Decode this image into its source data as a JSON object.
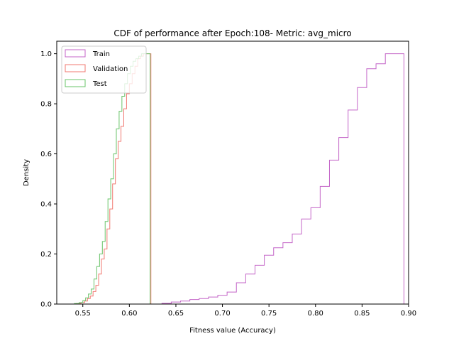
{
  "chart_data": {
    "type": "line",
    "subtype": "step-histogram-cdf",
    "title": "CDF of performance after Epoch:108- Metric: avg_micro",
    "xlabel": "Fitness value (Accuracy)",
    "ylabel": "Density",
    "xlim": [
      0.522,
      0.9
    ],
    "ylim": [
      0,
      1.05
    ],
    "xticks": [
      0.55,
      0.6,
      0.65,
      0.7,
      0.75,
      0.8,
      0.85,
      0.9
    ],
    "xtick_labels": [
      "0.55",
      "0.60",
      "0.65",
      "0.70",
      "0.75",
      "0.80",
      "0.85",
      "0.90"
    ],
    "yticks": [
      0.0,
      0.2,
      0.4,
      0.6,
      0.8,
      1.0
    ],
    "ytick_labels": [
      "0.0",
      "0.2",
      "0.4",
      "0.6",
      "0.8",
      "1.0"
    ],
    "legend_position": "top-left",
    "series": [
      {
        "name": "Train",
        "color": "#c466c8",
        "x": [
          0.635,
          0.645,
          0.655,
          0.665,
          0.675,
          0.685,
          0.695,
          0.705,
          0.715,
          0.725,
          0.735,
          0.745,
          0.755,
          0.765,
          0.775,
          0.785,
          0.795,
          0.805,
          0.815,
          0.825,
          0.835,
          0.845,
          0.855,
          0.865,
          0.875,
          0.885
        ],
        "values": [
          0.003,
          0.008,
          0.012,
          0.018,
          0.022,
          0.028,
          0.035,
          0.048,
          0.085,
          0.12,
          0.155,
          0.195,
          0.225,
          0.245,
          0.28,
          0.34,
          0.385,
          0.47,
          0.575,
          0.665,
          0.775,
          0.865,
          0.94,
          0.96,
          1.0,
          1.0
        ]
      },
      {
        "name": "Validation",
        "color": "#f07870",
        "x": [
          0.538,
          0.543,
          0.548,
          0.552,
          0.555,
          0.558,
          0.561,
          0.564,
          0.567,
          0.57,
          0.573,
          0.576,
          0.579,
          0.582,
          0.585,
          0.588,
          0.591,
          0.594,
          0.597,
          0.6,
          0.603,
          0.606,
          0.609,
          0.612,
          0.615,
          0.618,
          0.62
        ],
        "values": [
          0.0,
          0.002,
          0.006,
          0.012,
          0.022,
          0.032,
          0.05,
          0.075,
          0.12,
          0.18,
          0.22,
          0.3,
          0.38,
          0.48,
          0.58,
          0.65,
          0.71,
          0.78,
          0.84,
          0.88,
          0.92,
          0.95,
          0.98,
          0.99,
          1.0,
          1.0,
          1.0
        ]
      },
      {
        "name": "Test",
        "color": "#6ac46a",
        "x": [
          0.533,
          0.541,
          0.546,
          0.55,
          0.553,
          0.556,
          0.559,
          0.562,
          0.565,
          0.568,
          0.571,
          0.574,
          0.577,
          0.58,
          0.583,
          0.586,
          0.589,
          0.592,
          0.595,
          0.598,
          0.601,
          0.604,
          0.607,
          0.61,
          0.613,
          0.616,
          0.619
        ],
        "values": [
          0.0,
          0.002,
          0.006,
          0.014,
          0.025,
          0.04,
          0.06,
          0.1,
          0.15,
          0.2,
          0.25,
          0.33,
          0.42,
          0.5,
          0.6,
          0.7,
          0.77,
          0.83,
          0.88,
          0.92,
          0.95,
          0.97,
          0.98,
          0.99,
          1.0,
          1.0,
          1.0
        ]
      }
    ]
  }
}
